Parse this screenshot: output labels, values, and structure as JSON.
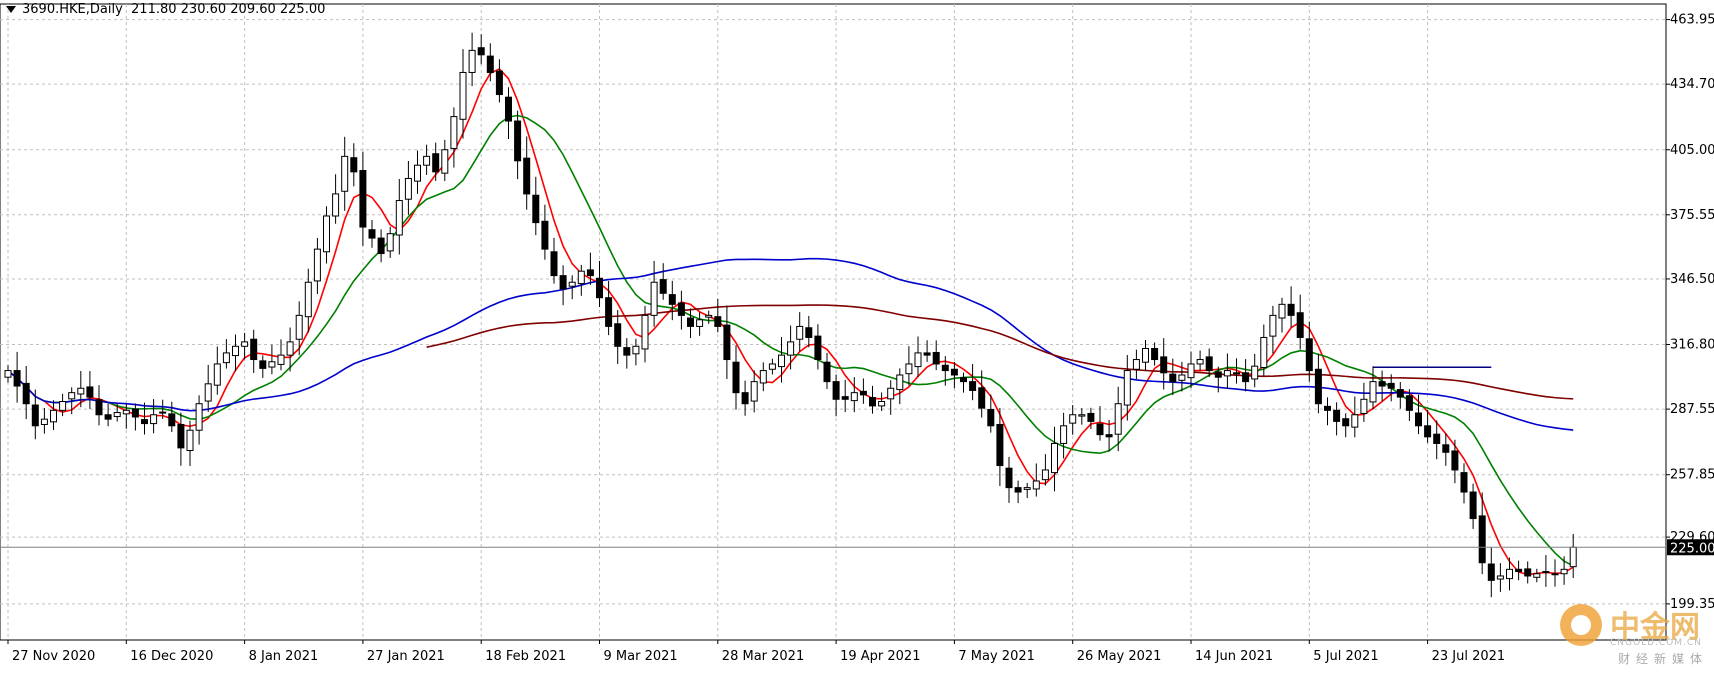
{
  "header": {
    "symbol": "3690.HKE,Daily",
    "ohlc": "211.80 230.60 209.60 225.00"
  },
  "price_tag": "225.00",
  "watermark": {
    "brand": "中金网",
    "url": "CNGOLD.COM.CN",
    "tagline": "财经新媒体"
  },
  "colors": {
    "ma_fast": "#ff0000",
    "ma_mid": "#008000",
    "ma_slow": "#0000cc",
    "ma_long": "#800000",
    "bull": "#ffffff",
    "bear": "#000000",
    "grid": "#c0c0c0"
  },
  "chart_data": {
    "type": "candlestick",
    "ylim": [
      183.0,
      471.0
    ],
    "y_ticks": [
      "463.95",
      "434.70",
      "405.00",
      "375.55",
      "346.50",
      "316.80",
      "287.55",
      "257.85",
      "229.60",
      "199.35"
    ],
    "x_labels": [
      {
        "i": 0,
        "label": "27 Nov 2020"
      },
      {
        "i": 13,
        "label": "16 Dec 2020"
      },
      {
        "i": 26,
        "label": "8 Jan 2021"
      },
      {
        "i": 39,
        "label": "27 Jan 2021"
      },
      {
        "i": 52,
        "label": "18 Feb 2021"
      },
      {
        "i": 65,
        "label": "9 Mar 2021"
      },
      {
        "i": 78,
        "label": "28 Mar 2021"
      },
      {
        "i": 91,
        "label": "19 Apr 2021"
      },
      {
        "i": 104,
        "label": "7 May 2021"
      },
      {
        "i": 117,
        "label": "26 May 2021"
      },
      {
        "i": 130,
        "label": "14 Jun 2021"
      },
      {
        "i": 143,
        "label": "5 Jul 2021"
      },
      {
        "i": 156,
        "label": "23 Jul 2021"
      }
    ],
    "closes": [
      305,
      298,
      290,
      280,
      283,
      287,
      291,
      295,
      297,
      293,
      285,
      283,
      286,
      287,
      284,
      281,
      285,
      286,
      280,
      270,
      278,
      290,
      299,
      308,
      313,
      316,
      318,
      310,
      306,
      309,
      312,
      318,
      330,
      345,
      360,
      375,
      385,
      402,
      395,
      370,
      365,
      358,
      367,
      382,
      392,
      398,
      402,
      395,
      405,
      420,
      440,
      450,
      448,
      440,
      430,
      418,
      400,
      385,
      372,
      360,
      348,
      342,
      345,
      350,
      348,
      338,
      325,
      316,
      312,
      316,
      330,
      345,
      340,
      335,
      330,
      325,
      328,
      330,
      325,
      310,
      295,
      290,
      300,
      305,
      308,
      312,
      318,
      325,
      320,
      310,
      300,
      292,
      292,
      295,
      294,
      289,
      291,
      297,
      303,
      308,
      313,
      312,
      308,
      305,
      303,
      300,
      296,
      288,
      280,
      262,
      252,
      250,
      252,
      255,
      260,
      272,
      280,
      285,
      285,
      282,
      276,
      275,
      290,
      305,
      310,
      315,
      310,
      304,
      300,
      303,
      308,
      310,
      305,
      302,
      305,
      304,
      300,
      307,
      320,
      330,
      335,
      330,
      320,
      305,
      290,
      287,
      282,
      280,
      285,
      292,
      300,
      298,
      297,
      293,
      287,
      280,
      275,
      272,
      268,
      260,
      250,
      238,
      218,
      210,
      212,
      215,
      214,
      212,
      213,
      214,
      213,
      215,
      225
    ],
    "series": [
      {
        "kind": "ma",
        "period": 5,
        "color": "#ff0000"
      },
      {
        "kind": "ma",
        "period": 12,
        "color": "#008000"
      },
      {
        "kind": "ma",
        "period": 60,
        "color": "#0000cc"
      },
      {
        "kind": "ma",
        "period": 120,
        "color": "#800000"
      }
    ],
    "hline": {
      "y": 306.5,
      "color": "#000080"
    }
  }
}
